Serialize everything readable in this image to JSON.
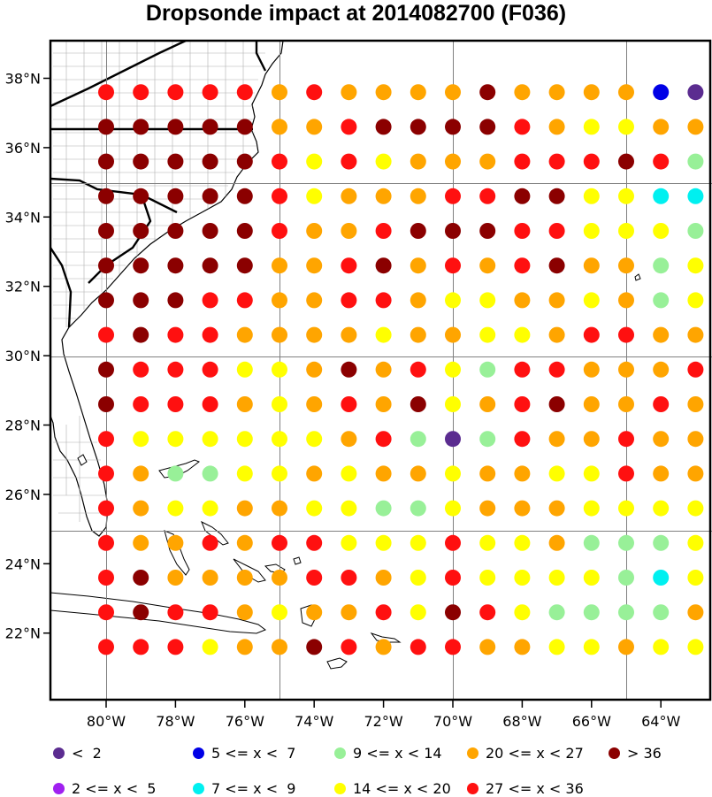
{
  "title": "Dropsonde impact at 2014082700 (F036)",
  "palette": {
    "lt2": "#5b2c90",
    "2to5": "#a020f0",
    "5to7": "#0000e6",
    "7to9": "#00f0f0",
    "9to14": "#98f098",
    "14to20": "#ffff00",
    "20to27": "#ffa500",
    "27to36": "#ff1010",
    "gt36": "#8b0000"
  },
  "code_map": {
    "P": "lt2",
    "V": "2to5",
    "B": "5to7",
    "C": "7to9",
    "G": "9to14",
    "Y": "14to20",
    "O": "20to27",
    "R": "27to36",
    "D": "gt36"
  },
  "legend": [
    {
      "label": "<  2",
      "color_key": "lt2"
    },
    {
      "label": "5 <= x <  7",
      "color_key": "5to7"
    },
    {
      "label": "9 <= x < 14",
      "color_key": "9to14"
    },
    {
      "label": "20 <= x < 27",
      "color_key": "20to27"
    },
    {
      "label": "> 36",
      "color_key": "gt36"
    },
    {
      "label": "2 <= x <  5",
      "color_key": "2to5"
    },
    {
      "label": "7 <= x <  9",
      "color_key": "7to9"
    },
    {
      "label": "14 <= x < 20",
      "color_key": "14to20"
    },
    {
      "label": "27 <= x < 36",
      "color_key": "27to36"
    }
  ],
  "lon_ticks": [
    "80°W",
    "78°W",
    "76°W",
    "74°W",
    "72°W",
    "70°W",
    "68°W",
    "66°W",
    "64°W"
  ],
  "lat_ticks": [
    "38°N",
    "36°N",
    "34°N",
    "32°N",
    "30°N",
    "28°N",
    "26°N",
    "24°N",
    "22°N"
  ],
  "grid": {
    "lon_start": -80,
    "lon_step": 1,
    "lat_start": 37.6,
    "lat_step": -1,
    "rows": [
      "RRRRROROOOODOOOOBP",
      "DDDDDOORDDDDROYYOO",
      "DDDDDRYRYOOORRRDRG",
      "DDDDDRYOOORRDDYYCC",
      "DDDDDROORDDDRRYYYG",
      "DDDDDOORDORORDOOGY",
      "DDDRROORROYYOOYOGY",
      "RDRROOOOYOOYYORROO",
      "DRRRYYODORYGRROOOR",
      "DRRROYORODYORDOORO",
      "RYYYYYYORGPGROOROO",
      "ROGGYYOYOOYOOYYROO",
      "ROYYOOYYGGYOOOYYYY",
      "ROORORRYYYRYYOGGGY",
      "RDOOOORROYRYYYYGCY",
      "RDRROYOORYDRYGGGGO",
      "RRRYOODRORROOYYOYY"
    ]
  }
}
